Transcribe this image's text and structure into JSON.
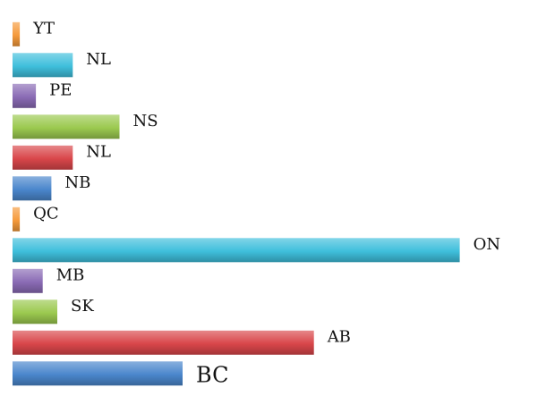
{
  "chart_data": {
    "type": "bar",
    "orientation": "horizontal",
    "grid": false,
    "legend": "none",
    "categories": [
      "YT",
      "NL",
      "PE",
      "NS",
      "NL",
      "NB",
      "QC",
      "ON",
      "MB",
      "SK",
      "AB",
      "BC"
    ],
    "values": [
      1.5,
      12.4,
      4.8,
      22,
      12.4,
      8,
      1.5,
      92,
      6.2,
      9.2,
      62,
      35
    ],
    "xlim": [
      0,
      100
    ],
    "colors": [
      "#f59a3c",
      "#3fbfdc",
      "#8a6bb5",
      "#9bc94f",
      "#d9464a",
      "#4a86cc",
      "#f59a3c",
      "#3fbfdc",
      "#8a6bb5",
      "#9bc94f",
      "#d9464a",
      "#4a86cc"
    ]
  }
}
